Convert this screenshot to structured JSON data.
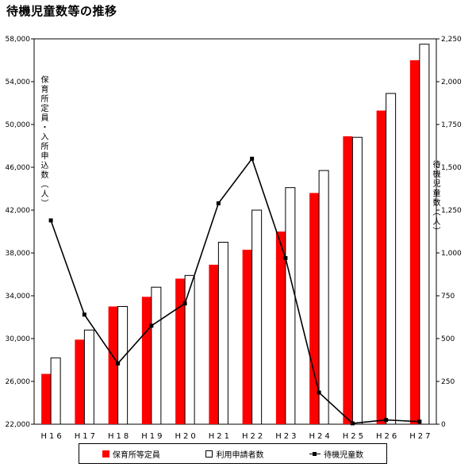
{
  "title": "待機児童数等の推移",
  "left_axis_label": "保育所定員・入所申込数（人）",
  "right_axis_label": "待機児童数（人）",
  "legend": {
    "capacity": "保育所等定員",
    "applicants": "利用申請者数",
    "waiting": "待機児童数"
  },
  "colors": {
    "capacity": "#ff0000",
    "applicants": "#ffffff",
    "waiting": "#000000"
  },
  "chart_data": {
    "type": "bar",
    "categories": [
      "H16",
      "H17",
      "H18",
      "H19",
      "H20",
      "H21",
      "H22",
      "H23",
      "H24",
      "H25",
      "H26",
      "H27"
    ],
    "series": [
      {
        "name": "保育所等定員",
        "type": "bar",
        "axis": "left",
        "values": [
          26700,
          29900,
          33000,
          33900,
          35600,
          36900,
          38300,
          40000,
          43600,
          48900,
          51300,
          56000
        ]
      },
      {
        "name": "利用申請者数",
        "type": "bar",
        "axis": "left",
        "values": [
          28200,
          30800,
          33000,
          34800,
          35900,
          39000,
          42000,
          44100,
          45700,
          48800,
          52900,
          57500
        ]
      },
      {
        "name": "待機児童数",
        "type": "line",
        "axis": "right",
        "values": [
          1190,
          640,
          355,
          575,
          705,
          1290,
          1550,
          970,
          185,
          5,
          25,
          15
        ]
      }
    ],
    "ylim_left": [
      22000,
      58000
    ],
    "yticks_left": [
      22000,
      26000,
      30000,
      34000,
      38000,
      42000,
      46000,
      50000,
      54000,
      58000
    ],
    "ytick_labels_left": [
      "22,000",
      "26,000",
      "30,000",
      "34,000",
      "38,000",
      "42,000",
      "46,000",
      "50,000",
      "54,000",
      "58,000"
    ],
    "ylim_right": [
      0,
      2250
    ],
    "yticks_right": [
      0,
      250,
      500,
      750,
      1000,
      1250,
      1500,
      1750,
      2000,
      2250
    ],
    "ytick_labels_right": [
      "0",
      "250",
      "500",
      "750",
      "1,000",
      "1,250",
      "1,500",
      "1,750",
      "2,000",
      "2,250"
    ],
    "xtick_labels": [
      "H16",
      "H17",
      "H18",
      "H19",
      "H20",
      "H21",
      "H22",
      "H23",
      "H24",
      "H25",
      "H26",
      "H27"
    ],
    "grid": false,
    "legend_position": "bottom"
  }
}
